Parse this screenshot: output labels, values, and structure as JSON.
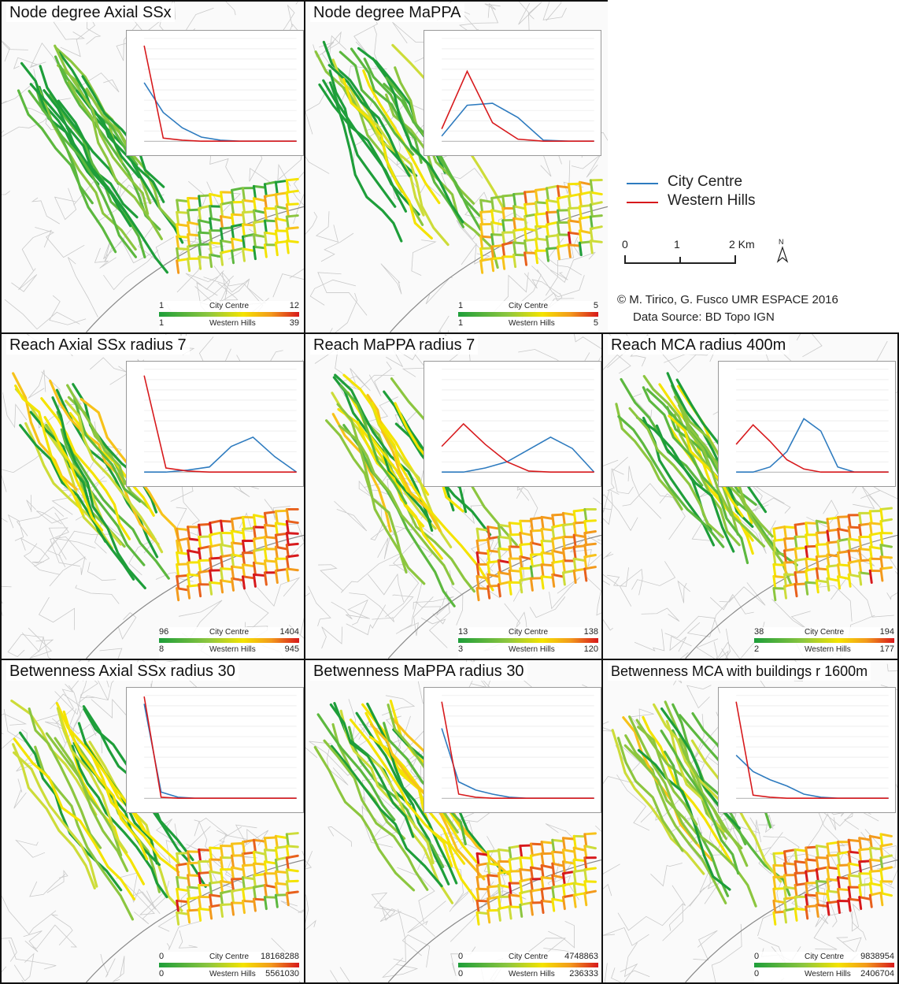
{
  "side_legend": {
    "series": [
      {
        "name": "City Centre",
        "color": "#2e7bbf"
      },
      {
        "name": "Western Hills",
        "color": "#d7191c"
      }
    ],
    "scale": {
      "ticks": [
        "0",
        "1",
        "2 Km"
      ],
      "north_label": "N"
    },
    "credit_line1": "© M. Tirico, G. Fusco UMR ESPACE 2016",
    "credit_line2": "Data Source: BD Topo IGN"
  },
  "panels": [
    {
      "title": "Node degree Axial SSx",
      "legend": {
        "cc_min": "1",
        "cc_max": "12",
        "wh_min": "1",
        "wh_max": "39",
        "cc_label": "City Centre",
        "wh_label": "Western Hills"
      }
    },
    {
      "title": "Node degree MaPPA",
      "legend": {
        "cc_min": "1",
        "cc_max": "5",
        "wh_min": "1",
        "wh_max": "5",
        "cc_label": "City Centre",
        "wh_label": "Western Hills"
      }
    },
    {
      "title": "Reach Axial SSx radius 7",
      "legend": {
        "cc_min": "96",
        "cc_max": "1404",
        "wh_min": "8",
        "wh_max": "945",
        "cc_label": "City Centre",
        "wh_label": "Western Hills"
      }
    },
    {
      "title": "Reach MaPPA radius 7",
      "legend": {
        "cc_min": "13",
        "cc_max": "138",
        "wh_min": "3",
        "wh_max": "120",
        "cc_label": "City Centre",
        "wh_label": "Western Hills"
      }
    },
    {
      "title": "Reach MCA radius 400m",
      "legend": {
        "cc_min": "38",
        "cc_max": "194",
        "wh_min": "2",
        "wh_max": "177",
        "cc_label": "City Centre",
        "wh_label": "Western Hills"
      }
    },
    {
      "title": "Betwenness Axial SSx radius 30",
      "legend": {
        "cc_min": "0",
        "cc_max": "18168288",
        "wh_min": "0",
        "wh_max": "5561030",
        "cc_label": "City Centre",
        "wh_label": "Western Hills"
      }
    },
    {
      "title": "Betwenness MaPPA radius 30",
      "legend": {
        "cc_min": "0",
        "cc_max": "4748863",
        "wh_min": "0",
        "wh_max": "236333",
        "cc_label": "City Centre",
        "wh_label": "Western Hills"
      }
    },
    {
      "title": "Betwenness MCA with buildings r 1600m",
      "legend": {
        "cc_min": "0",
        "cc_max": "9838954",
        "wh_min": "0",
        "wh_max": "2406704",
        "cc_label": "City Centre",
        "wh_label": "Western Hills"
      }
    }
  ],
  "chart_data": [
    {
      "type": "line",
      "panel": "Node degree Axial SSx",
      "series": [
        {
          "name": "City Centre",
          "values": [
            57,
            28,
            13,
            4,
            1,
            0,
            0,
            0,
            0
          ]
        },
        {
          "name": "Western Hills",
          "values": [
            93,
            3,
            1,
            0,
            0,
            0,
            0,
            0,
            0
          ]
        }
      ],
      "ylim": [
        0,
        100
      ]
    },
    {
      "type": "line",
      "panel": "Node degree MaPPA",
      "series": [
        {
          "name": "City Centre",
          "values": [
            5,
            35,
            37,
            23,
            1,
            0,
            0
          ]
        },
        {
          "name": "Western Hills",
          "values": [
            12,
            68,
            18,
            2,
            0,
            0,
            0
          ]
        }
      ],
      "ylim": [
        0,
        100
      ]
    },
    {
      "type": "line",
      "panel": "Reach Axial SSx radius 7",
      "series": [
        {
          "name": "City Centre",
          "values": [
            0,
            0,
            2,
            5,
            25,
            34,
            15,
            0
          ]
        },
        {
          "name": "Western Hills",
          "values": [
            94,
            4,
            1,
            0,
            0,
            0,
            0,
            0
          ]
        }
      ],
      "ylim": [
        0,
        100
      ]
    },
    {
      "type": "line",
      "panel": "Reach MaPPA radius 7",
      "series": [
        {
          "name": "City Centre",
          "values": [
            0,
            0,
            4,
            10,
            22,
            34,
            23,
            0
          ]
        },
        {
          "name": "Western Hills",
          "values": [
            25,
            47,
            27,
            10,
            1,
            0,
            0,
            0
          ]
        }
      ],
      "ylim": [
        0,
        100
      ]
    },
    {
      "type": "line",
      "panel": "Reach MCA radius 400m",
      "series": [
        {
          "name": "City Centre",
          "values": [
            0,
            0,
            5,
            20,
            52,
            40,
            5,
            0,
            0,
            0
          ]
        },
        {
          "name": "Western Hills",
          "values": [
            27,
            46,
            30,
            12,
            3,
            0,
            0,
            0,
            0,
            0
          ]
        }
      ],
      "ylim": [
        0,
        100
      ]
    },
    {
      "type": "line",
      "panel": "Betwenness Axial SSx radius 30",
      "series": [
        {
          "name": "City Centre",
          "values": [
            92,
            6,
            1,
            0,
            0,
            0,
            0,
            0,
            0,
            0
          ]
        },
        {
          "name": "Western Hills",
          "values": [
            99,
            1,
            0,
            0,
            0,
            0,
            0,
            0,
            0,
            0
          ]
        }
      ],
      "ylim": [
        0,
        100
      ]
    },
    {
      "type": "line",
      "panel": "Betwenness MaPPA radius 30",
      "series": [
        {
          "name": "City Centre",
          "values": [
            68,
            16,
            8,
            4,
            1,
            0,
            0,
            0,
            0,
            0
          ]
        },
        {
          "name": "Western Hills",
          "values": [
            94,
            4,
            1,
            0,
            0,
            0,
            0,
            0,
            0,
            0
          ]
        }
      ],
      "ylim": [
        0,
        100
      ]
    },
    {
      "type": "line",
      "panel": "Betwenness MCA with buildings r 1600m",
      "series": [
        {
          "name": "City Centre",
          "values": [
            42,
            26,
            18,
            12,
            4,
            1,
            0,
            0,
            0,
            0
          ]
        },
        {
          "name": "Western Hills",
          "values": [
            94,
            3,
            1,
            0,
            0,
            0,
            0,
            0,
            0,
            0
          ]
        }
      ],
      "ylim": [
        0,
        100
      ]
    }
  ]
}
